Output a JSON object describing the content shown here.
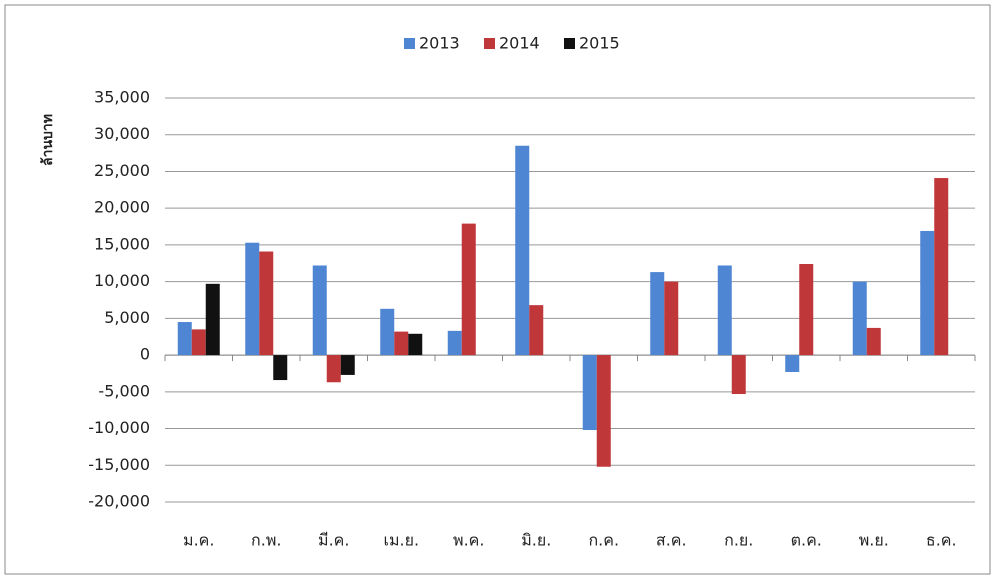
{
  "chart_data": {
    "type": "bar",
    "y_label": "ล้านบาท",
    "categories": [
      "ม.ค.",
      "ก.พ.",
      "มี.ค.",
      "เม.ย.",
      "พ.ค.",
      "มิ.ย.",
      "ก.ค.",
      "ส.ค.",
      "ก.ย.",
      "ต.ค.",
      "พ.ย.",
      "ธ.ค."
    ],
    "series": [
      {
        "name": "2013",
        "color": "#4f86d4",
        "values": [
          4500,
          15300,
          12200,
          6300,
          3300,
          28500,
          -10200,
          11300,
          12200,
          -2300,
          10000,
          16900
        ]
      },
      {
        "name": "2014",
        "color": "#c0373a",
        "values": [
          3500,
          14100,
          -3700,
          3200,
          17900,
          6800,
          -15200,
          10000,
          -5300,
          12400,
          3700,
          24100
        ]
      },
      {
        "name": "2015",
        "color": "#111111",
        "values": [
          9700,
          -3400,
          -2700,
          2900,
          null,
          null,
          null,
          null,
          null,
          null,
          null,
          null
        ]
      }
    ],
    "ylim": [
      -20000,
      35000
    ],
    "yticks": [
      {
        "value": -20000,
        "label": "-20,000"
      },
      {
        "value": -15000,
        "label": "-15,000"
      },
      {
        "value": -10000,
        "label": "-10,000"
      },
      {
        "value": -5000,
        "label": "-5,000"
      },
      0,
      {
        "value": 5000,
        "label": "5,000"
      },
      {
        "value": 10000,
        "label": "10,000"
      },
      {
        "value": 15000,
        "label": "15,000"
      },
      {
        "value": 20000,
        "label": "20,000"
      },
      {
        "value": 25000,
        "label": "25,000"
      },
      {
        "value": 30000,
        "label": "30,000"
      },
      {
        "value": 35000,
        "label": "35,000"
      }
    ],
    "grid": true
  }
}
